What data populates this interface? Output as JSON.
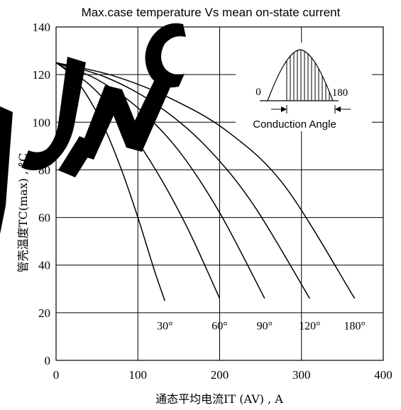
{
  "chart_data": {
    "type": "line",
    "title": "Max.case temperature Vs mean on-state current",
    "xlabel": "通态平均电流IT (AV) , A",
    "ylabel": "管壳温度TC(max) , °C",
    "xlim": [
      0,
      400
    ],
    "ylim": [
      0,
      140
    ],
    "x_ticks": [
      "0",
      "100",
      "200",
      "300",
      "400"
    ],
    "y_ticks": [
      "0",
      "20",
      "40",
      "60",
      "80",
      "100",
      "120",
      "140"
    ],
    "grid": true,
    "series": [
      {
        "name": "30°",
        "x": [
          0,
          20,
          40,
          60,
          80,
          100,
          120,
          133
        ],
        "y": [
          125,
          119.5,
          110,
          97,
          80,
          60,
          38,
          25
        ]
      },
      {
        "name": "60°",
        "x": [
          0,
          40,
          80,
          120,
          160,
          200
        ],
        "y": [
          125,
          116,
          101,
          81,
          56,
          26
        ]
      },
      {
        "name": "90°",
        "x": [
          0,
          50,
          100,
          150,
          200,
          255
        ],
        "y": [
          125,
          118,
          106,
          88,
          62,
          26
        ]
      },
      {
        "name": "120°",
        "x": [
          0,
          60,
          120,
          180,
          240,
          310
        ],
        "y": [
          125,
          119,
          108,
          91,
          66,
          26
        ]
      },
      {
        "name": "180°",
        "x": [
          0,
          70,
          140,
          210,
          280,
          365
        ],
        "y": [
          125,
          119.5,
          110,
          96,
          73,
          26
        ]
      }
    ],
    "inset": {
      "label": "Conduction Angle",
      "start_label": "0",
      "end_label": "180"
    }
  },
  "overlay_text": "JINC"
}
